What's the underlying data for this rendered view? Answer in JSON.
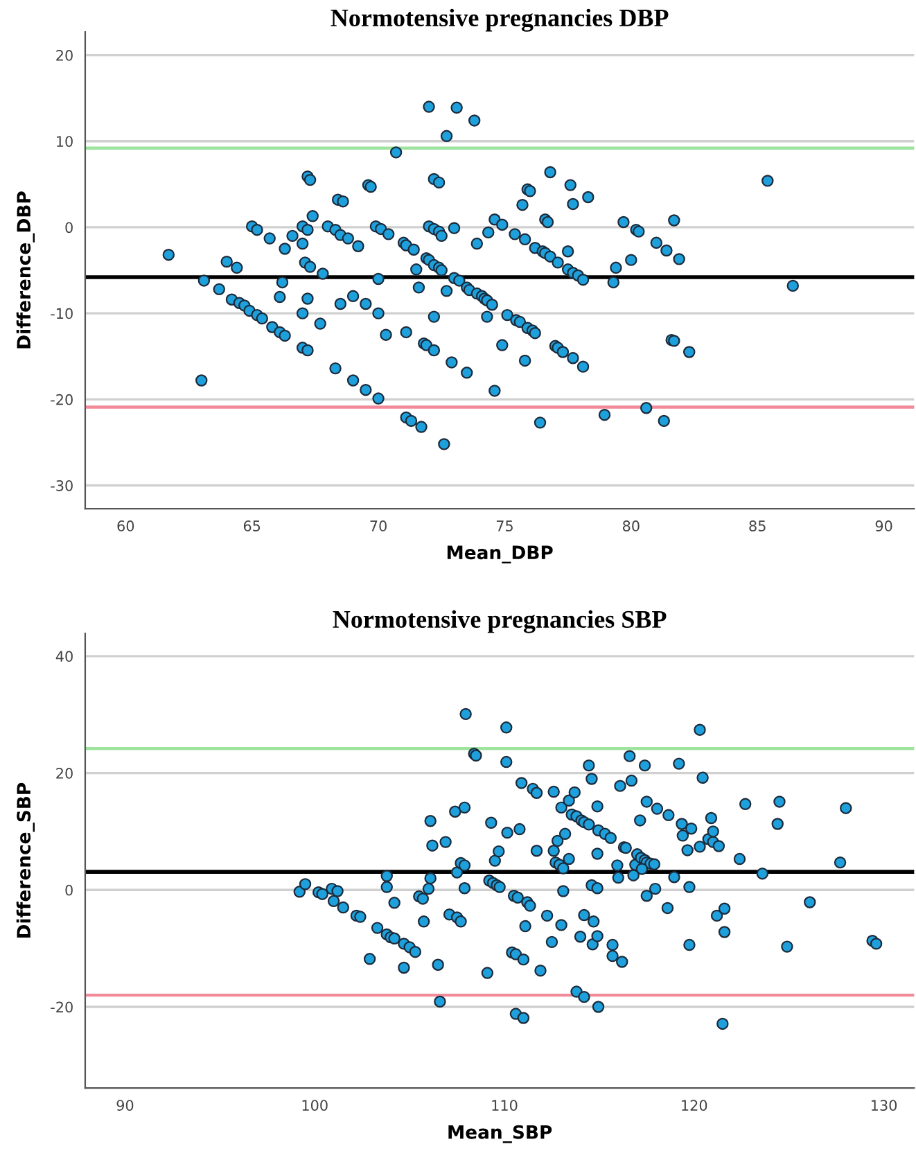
{
  "chart_data": [
    {
      "type": "scatter",
      "title": "Normotensive pregnancies DBP",
      "xlabel": "Mean_DBP",
      "ylabel": "Difference_DBP",
      "xlim": [
        58.4,
        91.2
      ],
      "ylim": [
        -32.7,
        22.7
      ],
      "xticks": [
        60,
        65,
        70,
        75,
        80,
        85,
        90
      ],
      "yticks": [
        -30,
        -20,
        -10,
        0,
        10,
        20
      ],
      "grid": "y",
      "marker": "circle",
      "ref_lines": [
        {
          "axis": "y",
          "value": -5.8,
          "color": "#000000"
        },
        {
          "axis": "y",
          "value": 9.2,
          "color": "#9ee39e"
        },
        {
          "axis": "y",
          "value": -20.9,
          "color": "#f28a9a"
        }
      ],
      "series": [
        {
          "color": "#1ea0dc",
          "x": [
            61.7,
            63.0,
            63.1,
            63.7,
            64.0,
            64.4,
            64.2,
            64.5,
            64.7,
            64.9,
            65.2,
            65.4,
            65.0,
            65.2,
            65.7,
            65.8,
            66.1,
            66.3,
            66.1,
            66.2,
            66.3,
            66.6,
            67.0,
            67.0,
            67.2,
            67.2,
            67.3,
            67.4,
            67.0,
            67.1,
            67.3,
            67.2,
            67.0,
            67.2,
            67.8,
            67.7,
            68.0,
            68.3,
            68.4,
            68.6,
            68.5,
            68.8,
            69.2,
            68.5,
            68.3,
            69.0,
            69.5,
            70.0,
            69.0,
            69.5,
            69.6,
            69.7,
            69.9,
            70.1,
            70.4,
            70.0,
            70.0,
            70.3,
            70.7,
            71.0,
            71.1,
            71.4,
            71.5,
            71.6,
            71.1,
            71.1,
            71.3,
            71.7,
            71.8,
            71.9,
            71.9,
            72.0,
            72.0,
            72.0,
            72.2,
            72.4,
            72.5,
            72.2,
            72.4,
            72.2,
            72.4,
            72.5,
            72.2,
            72.2,
            72.6,
            72.7,
            72.9,
            73.0,
            73.1,
            72.7,
            73.0,
            73.2,
            73.5,
            73.6,
            73.9,
            73.5,
            73.8,
            73.9,
            74.1,
            74.2,
            74.3,
            74.5,
            74.35,
            74.6,
            74.9,
            74.3,
            74.9,
            74.6,
            75.1,
            75.45,
            75.6,
            75.9,
            76.1,
            76.2,
            75.4,
            75.8,
            76.2,
            76.5,
            76.6,
            76.8,
            75.7,
            75.9,
            76.0,
            76.6,
            76.7,
            77.1,
            75.8,
            76.4,
            76.8,
            77.0,
            77.1,
            77.3,
            77.7,
            78.1,
            77.5,
            77.5,
            77.7,
            77.9,
            78.1,
            77.6,
            77.7,
            78.3,
            78.95,
            79.3,
            79.4,
            79.7,
            80.0,
            80.2,
            80.3,
            80.6,
            81.0,
            81.4,
            81.3,
            81.6,
            81.7,
            81.7,
            81.9,
            82.3,
            85.4,
            86.4
          ],
          "values": [
            -3.2,
            -17.8,
            -6.2,
            -7.2,
            -4.0,
            -4.7,
            -8.4,
            -8.8,
            -9.1,
            -9.7,
            -10.2,
            -10.6,
            0.1,
            -0.3,
            -1.3,
            -11.6,
            -12.2,
            -12.6,
            -8.1,
            -6.4,
            -2.5,
            -1.0,
            -1.9,
            0.1,
            -0.3,
            5.9,
            5.5,
            1.3,
            -10.0,
            -4.1,
            -4.6,
            -8.3,
            -14.0,
            -14.3,
            -5.4,
            -11.2,
            0.1,
            -0.3,
            3.2,
            3.0,
            -0.9,
            -1.3,
            -2.2,
            -8.9,
            -16.4,
            -17.8,
            -18.9,
            -19.9,
            -8.0,
            -8.9,
            4.9,
            4.7,
            0.1,
            -0.2,
            -0.8,
            -6.0,
            -10.0,
            -12.5,
            8.7,
            -1.8,
            -2.1,
            -2.6,
            -4.9,
            -7.0,
            -12.2,
            -22.1,
            -22.5,
            -23.2,
            -13.5,
            -13.7,
            -3.6,
            -3.8,
            14.0,
            0.1,
            -0.2,
            -0.5,
            -1.0,
            5.6,
            5.2,
            -4.4,
            -4.7,
            -5.0,
            -10.4,
            -14.3,
            -25.2,
            10.6,
            -15.7,
            -0.1,
            13.9,
            -7.4,
            -5.9,
            -6.2,
            -7.0,
            -7.3,
            -7.7,
            -16.9,
            12.4,
            -1.9,
            -8.0,
            -8.3,
            -8.5,
            -9.0,
            -0.6,
            0.9,
            0.3,
            -10.4,
            -13.7,
            -19.0,
            -10.2,
            -10.8,
            -11.0,
            -11.7,
            -12.0,
            -12.3,
            -0.8,
            -1.4,
            -2.4,
            -2.8,
            -3.0,
            -3.4,
            2.6,
            4.4,
            4.2,
            0.9,
            0.6,
            -4.1,
            -15.5,
            -22.7,
            6.4,
            -13.8,
            -14.0,
            -14.5,
            -15.2,
            -16.2,
            -2.8,
            -4.9,
            -5.3,
            -5.6,
            -6.1,
            4.9,
            2.7,
            3.5,
            -21.8,
            -6.4,
            -4.7,
            0.6,
            -3.8,
            -0.3,
            -0.5,
            -21.0,
            -1.8,
            -2.7,
            -22.5,
            -13.1,
            -13.2,
            0.8,
            -3.7,
            -14.5,
            5.4,
            -6.8
          ]
        }
      ]
    },
    {
      "type": "scatter",
      "title": "Normotensive pregnancies SBP",
      "xlabel": "Mean_SBP",
      "ylabel": "Difference_SBP",
      "xlim": [
        87.9,
        131.6
      ],
      "ylim": [
        -33.9,
        43.9
      ],
      "xticks": [
        90,
        100,
        110,
        120,
        130
      ],
      "yticks": [
        -20,
        0,
        20,
        40
      ],
      "grid": "y",
      "marker": "circle",
      "ref_lines": [
        {
          "axis": "y",
          "value": 3.1,
          "color": "#000000"
        },
        {
          "axis": "y",
          "value": 24.2,
          "color": "#9ee39e"
        },
        {
          "axis": "y",
          "value": -18.0,
          "color": "#f28a9a"
        }
      ],
      "series": [
        {
          "color": "#1ea0dc",
          "x": [
            99.2,
            99.5,
            100.2,
            100.4,
            100.9,
            101.2,
            101.0,
            101.5,
            102.2,
            102.4,
            102.9,
            103.3,
            103.8,
            103.8,
            103.8,
            104.0,
            104.2,
            104.2,
            104.7,
            105.0,
            105.3,
            104.7,
            105.5,
            105.7,
            105.75,
            106.0,
            106.1,
            106.1,
            106.2,
            106.5,
            106.6,
            106.9,
            107.1,
            107.5,
            107.7,
            107.4,
            107.5,
            107.7,
            107.9,
            107.9,
            107.9,
            107.96,
            108.4,
            108.5,
            109.3,
            109.5,
            109.7,
            109.2,
            109.4,
            109.6,
            109.75,
            109.1,
            110.1,
            110.1,
            110.15,
            110.8,
            110.9,
            110.5,
            110.7,
            111.2,
            111.35,
            111.1,
            110.4,
            110.6,
            111.0,
            110.6,
            111.0,
            111.5,
            111.7,
            111.7,
            111.9,
            112.25,
            112.5,
            112.6,
            112.6,
            112.8,
            112.7,
            112.9,
            113.0,
            113.1,
            113.1,
            113.0,
            113.2,
            113.4,
            113.4,
            113.7,
            113.55,
            113.8,
            114.06,
            114.2,
            114.45,
            114.45,
            114.6,
            114.2,
            114.0,
            114.6,
            114.9,
            114.7,
            114.65,
            114.9,
            114.9,
            114.9,
            114.95,
            115.3,
            115.6,
            113.8,
            114.2,
            114.95,
            115.7,
            115.7,
            116.2,
            115.95,
            116.0,
            116.1,
            116.3,
            116.4,
            116.6,
            116.7,
            116.8,
            116.9,
            117.0,
            117.2,
            117.4,
            117.5,
            117.7,
            117.9,
            117.15,
            117.25,
            117.4,
            117.5,
            117.5,
            117.95,
            118.05,
            118.6,
            118.65,
            118.95,
            119.2,
            119.35,
            119.4,
            119.65,
            119.75,
            119.75,
            119.85,
            120.3,
            120.3,
            120.45,
            120.75,
            121.0,
            121.3,
            120.9,
            121.0,
            121.2,
            121.6,
            121.6,
            121.5,
            122.4,
            122.7,
            123.6,
            124.4,
            124.5,
            124.9,
            126.1,
            127.7,
            128.0,
            129.4,
            129.6
          ],
          "values": [
            -0.3,
            1.0,
            -0.4,
            -0.7,
            0.2,
            -0.2,
            -1.9,
            -3.0,
            -4.4,
            -4.6,
            -11.8,
            -6.5,
            2.4,
            0.5,
            -7.6,
            -8.1,
            -8.3,
            -2.2,
            -9.2,
            -9.8,
            -10.6,
            -13.3,
            -1.1,
            -1.5,
            -5.4,
            0.2,
            2.0,
            11.8,
            7.6,
            -12.8,
            -19.1,
            8.2,
            -4.2,
            -4.7,
            -5.4,
            13.4,
            3.0,
            4.6,
            4.2,
            0.3,
            14.1,
            30.1,
            23.3,
            23.0,
            11.5,
            5.0,
            6.6,
            1.6,
            1.2,
            0.8,
            0.5,
            -14.2,
            27.8,
            21.9,
            9.8,
            10.4,
            18.3,
            -1.0,
            -1.3,
            -2.1,
            -2.7,
            -6.2,
            -10.7,
            -11.0,
            -11.9,
            -21.2,
            -21.9,
            17.3,
            16.6,
            6.7,
            -13.8,
            -4.4,
            -8.9,
            16.8,
            6.7,
            8.4,
            4.7,
            4.3,
            -6.0,
            3.7,
            -0.2,
            14.1,
            9.6,
            15.3,
            5.3,
            16.7,
            12.9,
            12.6,
            11.9,
            11.6,
            11.2,
            21.3,
            19.0,
            -4.3,
            -8.0,
            0.8,
            0.3,
            -5.4,
            -9.3,
            -7.9,
            14.3,
            6.2,
            10.2,
            9.6,
            8.9,
            -17.4,
            -18.3,
            -20.0,
            -9.4,
            -11.3,
            -12.3,
            4.2,
            2.1,
            17.8,
            7.3,
            7.2,
            22.9,
            18.7,
            2.5,
            4.3,
            6.1,
            5.5,
            5.1,
            4.7,
            4.5,
            4.4,
            11.9,
            3.6,
            21.3,
            15.1,
            -1.0,
            0.2,
            13.9,
            -3.1,
            12.8,
            2.2,
            21.6,
            11.3,
            9.3,
            6.8,
            0.5,
            -9.4,
            10.5,
            7.4,
            27.4,
            19.2,
            8.7,
            8.2,
            7.5,
            12.3,
            10.0,
            -4.4,
            -3.2,
            -7.2,
            -22.9,
            5.3,
            14.7,
            2.8,
            11.3,
            15.1,
            -9.7,
            -2.1,
            4.7,
            14.0,
            -8.7,
            -9.2
          ]
        }
      ]
    }
  ]
}
